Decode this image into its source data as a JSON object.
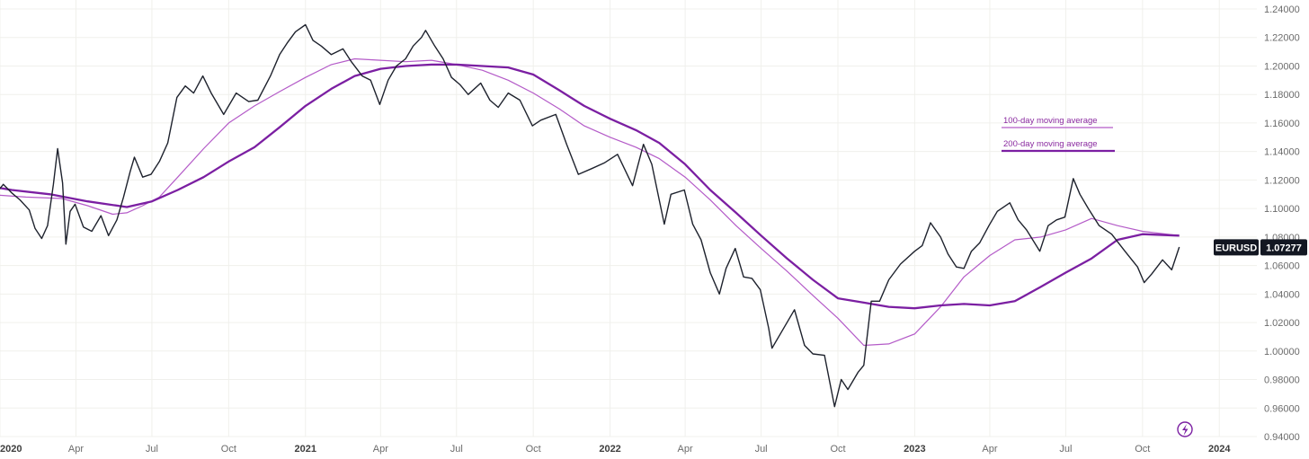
{
  "chart_data": {
    "type": "line",
    "symbol": "EURUSD",
    "last_price": "1.07277",
    "grid": true,
    "legend_placement": "top-right",
    "colors": {
      "price": "#1e222d",
      "ma100": "#b45bc8",
      "ma200": "#7b1fa2",
      "grid": "#f0f0ec",
      "badge": "#131722"
    },
    "ylim": [
      0.94,
      1.24
    ],
    "y_ticks": [
      "1.24000",
      "1.22000",
      "1.20000",
      "1.18000",
      "1.16000",
      "1.14000",
      "1.12000",
      "1.10000",
      "1.08000",
      "1.06000",
      "1.04000",
      "1.02000",
      "1.00000",
      "0.98000",
      "0.96000",
      "0.94000"
    ],
    "x_range": [
      "2020-01-01",
      "2024-02-15"
    ],
    "x_ticks": [
      {
        "date": "2020-01-01",
        "label": "2020",
        "year": true
      },
      {
        "date": "2020-04-01",
        "label": "Apr",
        "year": false
      },
      {
        "date": "2020-07-01",
        "label": "Jul",
        "year": false
      },
      {
        "date": "2020-10-01",
        "label": "Oct",
        "year": false
      },
      {
        "date": "2021-01-01",
        "label": "2021",
        "year": true
      },
      {
        "date": "2021-04-01",
        "label": "Apr",
        "year": false
      },
      {
        "date": "2021-07-01",
        "label": "Jul",
        "year": false
      },
      {
        "date": "2021-10-01",
        "label": "Oct",
        "year": false
      },
      {
        "date": "2022-01-01",
        "label": "2022",
        "year": true
      },
      {
        "date": "2022-04-01",
        "label": "Apr",
        "year": false
      },
      {
        "date": "2022-07-01",
        "label": "Jul",
        "year": false
      },
      {
        "date": "2022-10-01",
        "label": "Oct",
        "year": false
      },
      {
        "date": "2023-01-01",
        "label": "2023",
        "year": true
      },
      {
        "date": "2023-04-01",
        "label": "Apr",
        "year": false
      },
      {
        "date": "2023-07-01",
        "label": "Jul",
        "year": false
      },
      {
        "date": "2023-10-01",
        "label": "Oct",
        "year": false
      },
      {
        "date": "2024-01-01",
        "label": "2024",
        "year": true
      }
    ],
    "legend": [
      {
        "label": "100-day moving average",
        "series": "ma100"
      },
      {
        "label": "200-day moving average",
        "series": "ma200"
      }
    ],
    "series": [
      {
        "key": "price",
        "x": [
          "2019-12-15",
          "2019-12-25",
          "2020-01-05",
          "2020-01-15",
          "2020-01-25",
          "2020-02-05",
          "2020-02-12",
          "2020-02-20",
          "2020-02-27",
          "2020-03-05",
          "2020-03-10",
          "2020-03-16",
          "2020-03-20",
          "2020-03-25",
          "2020-03-31",
          "2020-04-10",
          "2020-04-20",
          "2020-05-01",
          "2020-05-10",
          "2020-05-20",
          "2020-05-28",
          "2020-06-05",
          "2020-06-10",
          "2020-06-20",
          "2020-06-30",
          "2020-07-10",
          "2020-07-20",
          "2020-07-31",
          "2020-08-10",
          "2020-08-20",
          "2020-08-31",
          "2020-09-10",
          "2020-09-25",
          "2020-10-10",
          "2020-10-25",
          "2020-11-05",
          "2020-11-20",
          "2020-12-01",
          "2020-12-10",
          "2020-12-20",
          "2021-01-01",
          "2021-01-10",
          "2021-01-20",
          "2021-02-01",
          "2021-02-15",
          "2021-02-25",
          "2021-03-10",
          "2021-03-20",
          "2021-03-31",
          "2021-04-10",
          "2021-04-20",
          "2021-05-01",
          "2021-05-10",
          "2021-05-20",
          "2021-05-25",
          "2021-06-05",
          "2021-06-15",
          "2021-06-25",
          "2021-07-05",
          "2021-07-15",
          "2021-07-30",
          "2021-08-10",
          "2021-08-20",
          "2021-09-01",
          "2021-09-15",
          "2021-09-30",
          "2021-10-10",
          "2021-10-28",
          "2021-11-10",
          "2021-11-24",
          "2021-12-10",
          "2021-12-25",
          "2022-01-10",
          "2022-01-28",
          "2022-02-10",
          "2022-02-20",
          "2022-03-07",
          "2022-03-15",
          "2022-03-31",
          "2022-04-10",
          "2022-04-20",
          "2022-05-01",
          "2022-05-12",
          "2022-05-20",
          "2022-05-31",
          "2022-06-10",
          "2022-06-20",
          "2022-06-30",
          "2022-07-10",
          "2022-07-14",
          "2022-07-25",
          "2022-08-10",
          "2022-08-22",
          "2022-09-01",
          "2022-09-15",
          "2022-09-27",
          "2022-10-05",
          "2022-10-13",
          "2022-10-25",
          "2022-11-01",
          "2022-11-10",
          "2022-11-20",
          "2022-12-01",
          "2022-12-15",
          "2023-01-01",
          "2023-01-10",
          "2023-01-20",
          "2023-02-01",
          "2023-02-10",
          "2023-02-20",
          "2023-03-01",
          "2023-03-10",
          "2023-03-20",
          "2023-03-31",
          "2023-04-10",
          "2023-04-25",
          "2023-05-05",
          "2023-05-15",
          "2023-05-31",
          "2023-06-10",
          "2023-06-20",
          "2023-06-30",
          "2023-07-10",
          "2023-07-18",
          "2023-07-28",
          "2023-08-10",
          "2023-08-25",
          "2023-09-10",
          "2023-09-25",
          "2023-10-03",
          "2023-10-12",
          "2023-10-25",
          "2023-11-05",
          "2023-11-14"
        ],
        "y": [
          1.113,
          1.109,
          1.117,
          1.111,
          1.106,
          1.099,
          1.086,
          1.079,
          1.088,
          1.117,
          1.142,
          1.118,
          1.075,
          1.098,
          1.103,
          1.087,
          1.084,
          1.095,
          1.081,
          1.092,
          1.108,
          1.126,
          1.136,
          1.122,
          1.124,
          1.133,
          1.146,
          1.178,
          1.186,
          1.181,
          1.193,
          1.181,
          1.166,
          1.181,
          1.175,
          1.176,
          1.193,
          1.208,
          1.216,
          1.224,
          1.229,
          1.218,
          1.214,
          1.208,
          1.212,
          1.203,
          1.193,
          1.19,
          1.173,
          1.19,
          1.2,
          1.205,
          1.214,
          1.22,
          1.225,
          1.214,
          1.205,
          1.192,
          1.187,
          1.18,
          1.188,
          1.176,
          1.171,
          1.181,
          1.176,
          1.158,
          1.162,
          1.166,
          1.145,
          1.124,
          1.128,
          1.132,
          1.138,
          1.116,
          1.145,
          1.131,
          1.089,
          1.11,
          1.113,
          1.089,
          1.078,
          1.055,
          1.04,
          1.058,
          1.072,
          1.052,
          1.051,
          1.043,
          1.016,
          1.002,
          1.013,
          1.029,
          1.004,
          0.998,
          0.997,
          0.961,
          0.98,
          0.973,
          0.985,
          0.99,
          1.035,
          1.035,
          1.05,
          1.061,
          1.07,
          1.074,
          1.09,
          1.08,
          1.068,
          1.059,
          1.058,
          1.07,
          1.076,
          1.088,
          1.098,
          1.104,
          1.092,
          1.085,
          1.07,
          1.088,
          1.092,
          1.094,
          1.121,
          1.11,
          1.1,
          1.088,
          1.082,
          1.07,
          1.059,
          1.048,
          1.054,
          1.064,
          1.057,
          1.073
        ]
      },
      {
        "key": "ma100",
        "x": [
          "2019-12-15",
          "2020-02-01",
          "2020-03-15",
          "2020-04-15",
          "2020-05-15",
          "2020-06-01",
          "2020-06-20",
          "2020-07-10",
          "2020-08-01",
          "2020-09-01",
          "2020-10-01",
          "2020-11-01",
          "2020-12-01",
          "2021-01-01",
          "2021-02-01",
          "2021-03-01",
          "2021-04-01",
          "2021-05-01",
          "2021-06-01",
          "2021-07-01",
          "2021-08-01",
          "2021-09-01",
          "2021-10-01",
          "2021-11-01",
          "2021-12-01",
          "2022-01-01",
          "2022-02-01",
          "2022-03-01",
          "2022-04-01",
          "2022-05-01",
          "2022-06-01",
          "2022-07-01",
          "2022-08-01",
          "2022-09-01",
          "2022-10-01",
          "2022-11-01",
          "2022-12-01",
          "2023-01-01",
          "2023-02-01",
          "2023-03-01",
          "2023-04-01",
          "2023-05-01",
          "2023-06-01",
          "2023-07-01",
          "2023-08-01",
          "2023-09-01",
          "2023-10-01",
          "2023-11-14"
        ],
        "y": [
          1.11,
          1.108,
          1.107,
          1.102,
          1.096,
          1.097,
          1.102,
          1.108,
          1.122,
          1.142,
          1.16,
          1.172,
          1.182,
          1.192,
          1.201,
          1.205,
          1.204,
          1.203,
          1.204,
          1.201,
          1.197,
          1.19,
          1.181,
          1.17,
          1.158,
          1.15,
          1.143,
          1.135,
          1.122,
          1.106,
          1.088,
          1.072,
          1.056,
          1.039,
          1.023,
          1.004,
          1.005,
          1.012,
          1.031,
          1.052,
          1.067,
          1.078,
          1.08,
          1.085,
          1.093,
          1.088,
          1.084,
          1.081
        ]
      },
      {
        "key": "ma200",
        "x": [
          "2019-12-15",
          "2020-01-15",
          "2020-03-01",
          "2020-04-15",
          "2020-06-01",
          "2020-07-01",
          "2020-08-01",
          "2020-09-01",
          "2020-10-01",
          "2020-11-01",
          "2020-12-01",
          "2021-01-01",
          "2021-02-01",
          "2021-03-01",
          "2021-04-01",
          "2021-05-01",
          "2021-06-01",
          "2021-07-01",
          "2021-08-01",
          "2021-09-01",
          "2021-10-01",
          "2021-11-01",
          "2021-12-01",
          "2022-01-01",
          "2022-02-01",
          "2022-03-01",
          "2022-04-01",
          "2022-05-01",
          "2022-06-01",
          "2022-07-01",
          "2022-08-01",
          "2022-09-01",
          "2022-10-01",
          "2022-11-01",
          "2022-12-01",
          "2023-01-01",
          "2023-02-01",
          "2023-03-01",
          "2023-04-01",
          "2023-05-01",
          "2023-06-01",
          "2023-07-01",
          "2023-08-01",
          "2023-09-01",
          "2023-10-01",
          "2023-11-14"
        ],
        "y": [
          1.116,
          1.113,
          1.11,
          1.105,
          1.101,
          1.105,
          1.113,
          1.122,
          1.133,
          1.143,
          1.157,
          1.172,
          1.184,
          1.193,
          1.198,
          1.2,
          1.201,
          1.201,
          1.2,
          1.199,
          1.194,
          1.183,
          1.172,
          1.163,
          1.155,
          1.146,
          1.131,
          1.113,
          1.097,
          1.081,
          1.065,
          1.05,
          1.037,
          1.034,
          1.031,
          1.03,
          1.032,
          1.033,
          1.032,
          1.035,
          1.045,
          1.055,
          1.065,
          1.078,
          1.082,
          1.081
        ]
      }
    ]
  },
  "ui": {
    "bolt_icon": "lightning-bolt-icon"
  }
}
